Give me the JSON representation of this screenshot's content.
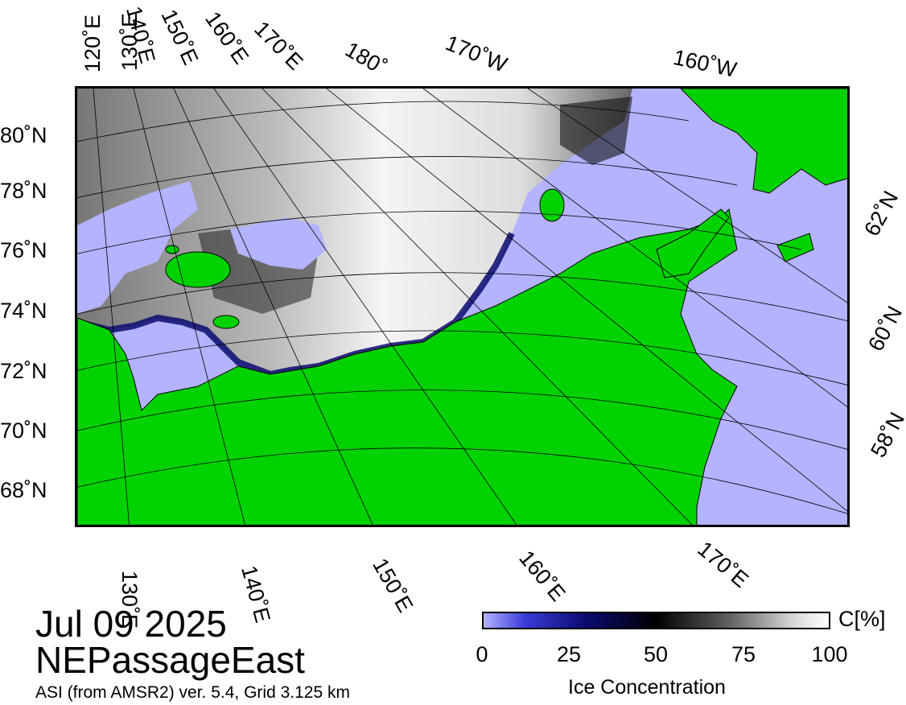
{
  "map": {
    "date": "Jul 09 2025",
    "region": "NEPassageEast",
    "product": "ASI (from AMSR2) ver. 5.4,  Grid 3.125 km",
    "colors": {
      "ocean": "#b3b3ff",
      "land": "#00d200",
      "ice_high": "#ffffff",
      "ice_mid": "#000000",
      "ice_low": "#0a0a6e"
    }
  },
  "labels": {
    "top": [
      "120˚E",
      "130˚E",
      "140˚E",
      "150˚E",
      "160˚E",
      "170˚E",
      "180˚",
      "170˚W",
      "160˚W"
    ],
    "left": [
      "80˚N",
      "78˚N",
      "76˚N",
      "74˚N",
      "72˚N",
      "70˚N",
      "68˚N"
    ],
    "right": [
      "62˚N",
      "60˚N",
      "58˚N"
    ],
    "bottom": [
      "130˚E",
      "140˚E",
      "150˚E",
      "160˚E",
      "170˚E"
    ]
  },
  "colorbar": {
    "title": "Ice Concentration",
    "unit": "C[%]",
    "ticks": [
      "0",
      "25",
      "50",
      "75",
      "100"
    ],
    "range": [
      0,
      100
    ]
  }
}
